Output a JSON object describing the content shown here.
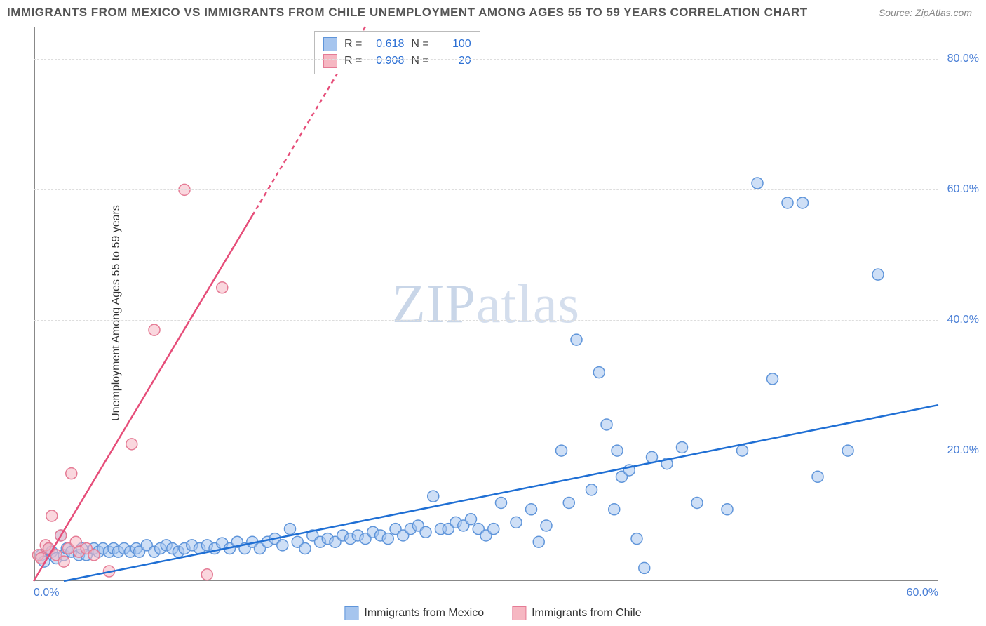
{
  "title": "IMMIGRANTS FROM MEXICO VS IMMIGRANTS FROM CHILE UNEMPLOYMENT AMONG AGES 55 TO 59 YEARS CORRELATION CHART",
  "source": "Source: ZipAtlas.com",
  "ylabel": "Unemployment Among Ages 55 to 59 years",
  "watermark_a": "ZIP",
  "watermark_b": "atlas",
  "chart": {
    "type": "scatter",
    "background_color": "#ffffff",
    "grid_color": "#dddddd",
    "axis_color": "#888888",
    "xlim": [
      0,
      60
    ],
    "ylim": [
      0,
      85
    ],
    "ytick_values": [
      20,
      40,
      60,
      80
    ],
    "ytick_labels": [
      "20.0%",
      "40.0%",
      "60.0%",
      "80.0%"
    ],
    "xtick_labels": {
      "left": "0.0%",
      "right": "60.0%"
    },
    "tick_color": "#4a7fd6",
    "label_fontsize": 16,
    "title_fontsize": 17,
    "marker_radius": 8,
    "marker_stroke_width": 1.5,
    "line_width": 2.5,
    "series": [
      {
        "name": "Immigrants from Mexico",
        "fill_color": "#a6c5ee",
        "stroke_color": "#5f95da",
        "line_color": "#1f6fd4",
        "fill_opacity": 0.55,
        "R": "0.618",
        "N": "100",
        "trend": {
          "x1": 2,
          "y1": 0,
          "x2": 60,
          "y2": 27,
          "dash_after_x": null
        },
        "points": [
          [
            0.5,
            4
          ],
          [
            0.7,
            3
          ],
          [
            1,
            5
          ],
          [
            1.2,
            4.5
          ],
          [
            1.5,
            3.5
          ],
          [
            1.8,
            7
          ],
          [
            2,
            4
          ],
          [
            2.2,
            5
          ],
          [
            2.5,
            4.5
          ],
          [
            3,
            4
          ],
          [
            3.2,
            5
          ],
          [
            3.5,
            4
          ],
          [
            4,
            5
          ],
          [
            4.3,
            4.5
          ],
          [
            4.6,
            5
          ],
          [
            5,
            4.5
          ],
          [
            5.3,
            5
          ],
          [
            5.6,
            4.5
          ],
          [
            6,
            5
          ],
          [
            6.4,
            4.5
          ],
          [
            6.8,
            5
          ],
          [
            7,
            4.5
          ],
          [
            7.5,
            5.5
          ],
          [
            8,
            4.5
          ],
          [
            8.4,
            5
          ],
          [
            8.8,
            5.5
          ],
          [
            9.2,
            5
          ],
          [
            9.6,
            4.5
          ],
          [
            10,
            5
          ],
          [
            10.5,
            5.5
          ],
          [
            11,
            5
          ],
          [
            11.5,
            5.5
          ],
          [
            12,
            5
          ],
          [
            12.5,
            5.8
          ],
          [
            13,
            5
          ],
          [
            13.5,
            6
          ],
          [
            14,
            5
          ],
          [
            14.5,
            6
          ],
          [
            15,
            5
          ],
          [
            15.5,
            6
          ],
          [
            16,
            6.5
          ],
          [
            16.5,
            5.5
          ],
          [
            17,
            8
          ],
          [
            17.5,
            6
          ],
          [
            18,
            5
          ],
          [
            18.5,
            7
          ],
          [
            19,
            6
          ],
          [
            19.5,
            6.5
          ],
          [
            20,
            6
          ],
          [
            20.5,
            7
          ],
          [
            21,
            6.5
          ],
          [
            21.5,
            7
          ],
          [
            22,
            6.5
          ],
          [
            22.5,
            7.5
          ],
          [
            23,
            7
          ],
          [
            23.5,
            6.5
          ],
          [
            24,
            8
          ],
          [
            24.5,
            7
          ],
          [
            25,
            8
          ],
          [
            25.5,
            8.5
          ],
          [
            26,
            7.5
          ],
          [
            26.5,
            13
          ],
          [
            27,
            8
          ],
          [
            27.5,
            8
          ],
          [
            28,
            9
          ],
          [
            28.5,
            8.5
          ],
          [
            29,
            9.5
          ],
          [
            29.5,
            8
          ],
          [
            30,
            7
          ],
          [
            30.5,
            8
          ],
          [
            31,
            12
          ],
          [
            32,
            9
          ],
          [
            33,
            11
          ],
          [
            33.5,
            6
          ],
          [
            34,
            8.5
          ],
          [
            35,
            20
          ],
          [
            35.5,
            12
          ],
          [
            36,
            37
          ],
          [
            37,
            14
          ],
          [
            37.5,
            32
          ],
          [
            38,
            24
          ],
          [
            38.5,
            11
          ],
          [
            38.7,
            20
          ],
          [
            39,
            16
          ],
          [
            39.5,
            17
          ],
          [
            40,
            6.5
          ],
          [
            40.5,
            2
          ],
          [
            41,
            19
          ],
          [
            42,
            18
          ],
          [
            43,
            20.5
          ],
          [
            44,
            12
          ],
          [
            46,
            11
          ],
          [
            47,
            20
          ],
          [
            48,
            61
          ],
          [
            49,
            31
          ],
          [
            50,
            58
          ],
          [
            51,
            58
          ],
          [
            52,
            16
          ],
          [
            54,
            20
          ],
          [
            56,
            47
          ]
        ]
      },
      {
        "name": "Immigrants from Chile",
        "fill_color": "#f6b7c2",
        "stroke_color": "#e57b95",
        "line_color": "#e64d79",
        "fill_opacity": 0.55,
        "R": "0.908",
        "N": "20",
        "trend": {
          "x1": 0,
          "y1": 0,
          "x2": 22,
          "y2": 85,
          "dash_after_x": 14.5
        },
        "points": [
          [
            0.3,
            4
          ],
          [
            0.5,
            3.5
          ],
          [
            0.8,
            5.5
          ],
          [
            1,
            5
          ],
          [
            1.2,
            10
          ],
          [
            1.5,
            4
          ],
          [
            1.8,
            7
          ],
          [
            2,
            3
          ],
          [
            2.3,
            5
          ],
          [
            2.5,
            16.5
          ],
          [
            2.8,
            6
          ],
          [
            3,
            4.5
          ],
          [
            3.5,
            5
          ],
          [
            4,
            4
          ],
          [
            5,
            1.5
          ],
          [
            6.5,
            21
          ],
          [
            8,
            38.5
          ],
          [
            10,
            60
          ],
          [
            11.5,
            1
          ],
          [
            12.5,
            45
          ]
        ]
      }
    ]
  },
  "legend_top": {
    "label_R": "R =",
    "label_N": "N ="
  },
  "legend_bottom": [
    {
      "label": "Immigrants from Mexico",
      "fill": "#a6c5ee",
      "stroke": "#5f95da"
    },
    {
      "label": "Immigrants from Chile",
      "fill": "#f6b7c2",
      "stroke": "#e57b95"
    }
  ]
}
